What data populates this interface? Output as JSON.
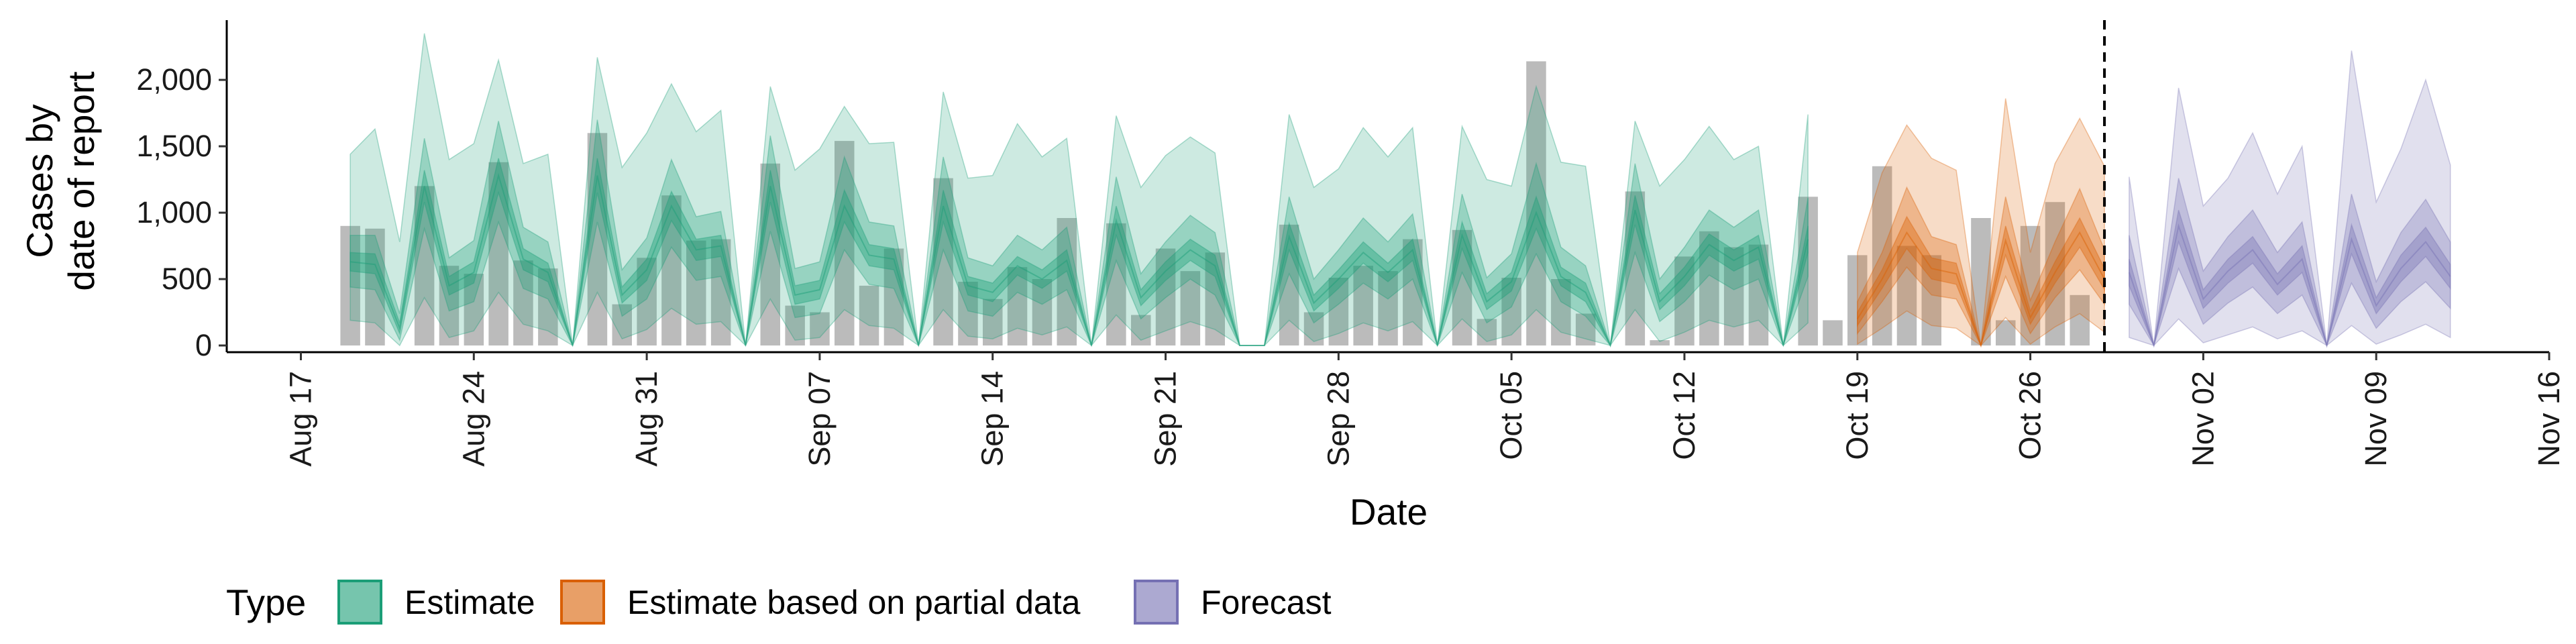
{
  "chart_data": {
    "type": "bar",
    "xlabel": "Date",
    "ylabel_lines": [
      "Cases by",
      "date of report"
    ],
    "ylim": [
      0,
      2450
    ],
    "y_ticks": [
      {
        "value": 0,
        "label": "0"
      },
      {
        "value": 500,
        "label": "500"
      },
      {
        "value": 1000,
        "label": "1,000"
      },
      {
        "value": 1500,
        "label": "1,500"
      },
      {
        "value": 2000,
        "label": "2,000"
      }
    ],
    "x_range": [
      "2020-08-14",
      "2020-11-16"
    ],
    "x_ticks": [
      {
        "date": "2020-08-17",
        "label": "Aug 17"
      },
      {
        "date": "2020-08-24",
        "label": "Aug 24"
      },
      {
        "date": "2020-08-31",
        "label": "Aug 31"
      },
      {
        "date": "2020-09-07",
        "label": "Sep 07"
      },
      {
        "date": "2020-09-14",
        "label": "Sep 14"
      },
      {
        "date": "2020-09-21",
        "label": "Sep 21"
      },
      {
        "date": "2020-09-28",
        "label": "Sep 28"
      },
      {
        "date": "2020-10-05",
        "label": "Oct 05"
      },
      {
        "date": "2020-10-12",
        "label": "Oct 12"
      },
      {
        "date": "2020-10-19",
        "label": "Oct 19"
      },
      {
        "date": "2020-10-26",
        "label": "Oct 26"
      },
      {
        "date": "2020-11-02",
        "label": "Nov 02"
      },
      {
        "date": "2020-11-09",
        "label": "Nov 09"
      },
      {
        "date": "2020-11-16",
        "label": "Nov 16"
      }
    ],
    "forecast_start": "2020-10-29",
    "colors": {
      "observed_bars": "#9e9e9e",
      "Estimate": "#1b9e77",
      "Estimate based on partial data": "#d95f02",
      "Forecast": "#7570b3",
      "forecast_line": "#000000"
    },
    "observed": {
      "start_date": "2020-08-19",
      "values": [
        900,
        880,
        0,
        1200,
        600,
        540,
        1380,
        640,
        580,
        0,
        1600,
        310,
        660,
        1130,
        790,
        800,
        0,
        1370,
        300,
        250,
        1540,
        450,
        730,
        0,
        1260,
        480,
        350,
        590,
        500,
        960,
        0,
        920,
        230,
        730,
        560,
        700,
        0,
        0,
        910,
        250,
        510,
        600,
        560,
        800,
        0,
        870,
        200,
        510,
        2140,
        500,
        240,
        0,
        1160,
        40,
        670,
        860,
        740,
        760,
        0,
        1120,
        190,
        680,
        1350,
        750,
        680,
        0,
        960,
        190,
        900,
        1080,
        380
      ]
    },
    "series": [
      {
        "name": "Estimate",
        "start_date": "2020-08-19",
        "median": [
          630,
          610,
          130,
          1200,
          450,
          550,
          1280,
          650,
          550,
          0,
          1280,
          380,
          570,
          1050,
          720,
          750,
          0,
          1200,
          380,
          420,
          1050,
          680,
          650,
          0,
          1050,
          450,
          400,
          600,
          500,
          640,
          0,
          940,
          360,
          560,
          720,
          600,
          0,
          0,
          820,
          320,
          500,
          700,
          550,
          720,
          0,
          830,
          330,
          480,
          1000,
          520,
          400,
          0,
          1020,
          330,
          520,
          760,
          640,
          740,
          0,
          800
        ],
        "low20": [
          560,
          540,
          90,
          1080,
          380,
          470,
          1150,
          570,
          480,
          0,
          1150,
          320,
          490,
          940,
          640,
          670,
          0,
          1080,
          310,
          350,
          930,
          600,
          570,
          0,
          930,
          380,
          330,
          530,
          430,
          560,
          0,
          830,
          300,
          490,
          640,
          520,
          0,
          0,
          720,
          260,
          430,
          620,
          480,
          640,
          0,
          730,
          270,
          410,
          880,
          450,
          330,
          0,
          910,
          270,
          450,
          680,
          560,
          650,
          0,
          700
        ],
        "high20": [
          700,
          690,
          170,
          1320,
          520,
          630,
          1410,
          730,
          620,
          0,
          1410,
          440,
          650,
          1160,
          800,
          830,
          0,
          1320,
          450,
          490,
          1170,
          760,
          730,
          0,
          1170,
          520,
          470,
          670,
          570,
          720,
          0,
          1050,
          420,
          630,
          800,
          680,
          0,
          0,
          920,
          380,
          570,
          780,
          620,
          800,
          0,
          930,
          390,
          550,
          1120,
          590,
          470,
          0,
          1130,
          390,
          590,
          840,
          720,
          830,
          0,
          900
        ],
        "low50": [
          440,
          420,
          40,
          880,
          260,
          330,
          930,
          430,
          350,
          0,
          930,
          220,
          350,
          740,
          490,
          520,
          0,
          860,
          210,
          240,
          720,
          460,
          430,
          0,
          720,
          260,
          220,
          400,
          310,
          420,
          0,
          640,
          200,
          360,
          500,
          380,
          0,
          0,
          540,
          170,
          310,
          470,
          350,
          500,
          0,
          550,
          170,
          290,
          690,
          330,
          220,
          0,
          700,
          180,
          330,
          530,
          420,
          500,
          0,
          520
        ],
        "high50": [
          830,
          830,
          240,
          1560,
          660,
          790,
          1690,
          890,
          780,
          0,
          1700,
          570,
          810,
          1400,
          970,
          1010,
          0,
          1580,
          580,
          630,
          1420,
          930,
          900,
          0,
          1420,
          660,
          600,
          830,
          720,
          890,
          0,
          1270,
          540,
          780,
          980,
          850,
          0,
          0,
          1120,
          500,
          720,
          960,
          780,
          990,
          0,
          1140,
          510,
          690,
          1370,
          740,
          600,
          0,
          1370,
          500,
          740,
          1020,
          890,
          1020,
          0,
          1110
        ],
        "low90": [
          190,
          170,
          0,
          360,
          60,
          110,
          400,
          160,
          110,
          0,
          400,
          50,
          120,
          280,
          160,
          180,
          0,
          350,
          40,
          60,
          270,
          150,
          130,
          0,
          270,
          70,
          50,
          130,
          80,
          140,
          0,
          230,
          40,
          110,
          180,
          120,
          0,
          0,
          190,
          30,
          90,
          170,
          110,
          180,
          0,
          200,
          30,
          80,
          270,
          100,
          50,
          0,
          270,
          30,
          100,
          190,
          140,
          190,
          0,
          170
        ],
        "high90": [
          1440,
          1630,
          780,
          2350,
          1400,
          1520,
          2150,
          1370,
          1440,
          0,
          2170,
          1340,
          1600,
          1970,
          1610,
          1770,
          0,
          1950,
          1320,
          1480,
          1800,
          1520,
          1530,
          0,
          1910,
          1260,
          1280,
          1670,
          1420,
          1560,
          0,
          1730,
          1190,
          1430,
          1570,
          1450,
          0,
          0,
          1740,
          1190,
          1330,
          1640,
          1420,
          1640,
          0,
          1650,
          1250,
          1200,
          1950,
          1380,
          1350,
          0,
          1690,
          1200,
          1400,
          1650,
          1400,
          1500,
          0,
          1740
        ]
      },
      {
        "name": "Estimate based on partial data",
        "start_date": "2020-10-19",
        "median": [
          200,
          500,
          850,
          580,
          540,
          0,
          790,
          210,
          550,
          850,
          500
        ],
        "low20": [
          150,
          430,
          730,
          500,
          460,
          0,
          680,
          160,
          470,
          740,
          420
        ],
        "high20": [
          250,
          570,
          970,
          660,
          620,
          0,
          900,
          260,
          630,
          960,
          580
        ],
        "low50": [
          90,
          330,
          590,
          380,
          350,
          0,
          520,
          90,
          360,
          570,
          310
        ],
        "high50": [
          330,
          700,
          1190,
          820,
          760,
          0,
          1120,
          340,
          780,
          1180,
          720
        ],
        "low90": [
          10,
          130,
          260,
          150,
          130,
          0,
          210,
          10,
          140,
          240,
          100
        ],
        "high90": [
          700,
          1300,
          1660,
          1410,
          1320,
          0,
          1860,
          700,
          1370,
          1710,
          1350
        ]
      },
      {
        "name": "Forecast",
        "start_date": "2020-10-30",
        "median": [
          550,
          0,
          900,
          350,
          560,
          720,
          460,
          650,
          0,
          800,
          300,
          580,
          780,
          520
        ],
        "low20": [
          450,
          0,
          780,
          280,
          470,
          620,
          380,
          550,
          0,
          690,
          240,
          480,
          670,
          430
        ],
        "high20": [
          650,
          0,
          1020,
          420,
          650,
          820,
          540,
          750,
          0,
          910,
          360,
          680,
          890,
          610
        ],
        "low50": [
          310,
          0,
          580,
          160,
          320,
          440,
          240,
          380,
          0,
          470,
          130,
          330,
          480,
          280
        ],
        "high50": [
          830,
          0,
          1260,
          560,
          820,
          1020,
          700,
          930,
          0,
          1140,
          480,
          850,
          1100,
          780
        ],
        "low90": [
          60,
          0,
          200,
          20,
          80,
          140,
          50,
          110,
          0,
          150,
          10,
          80,
          160,
          60
        ],
        "high90": [
          1270,
          0,
          1940,
          1050,
          1260,
          1600,
          1140,
          1500,
          0,
          2220,
          1080,
          1480,
          2000,
          1360
        ]
      }
    ]
  },
  "legend": {
    "title": "Type",
    "items": [
      {
        "label": "Estimate",
        "color_key": "Estimate"
      },
      {
        "label": "Estimate based on partial data",
        "color_key": "Estimate based on partial data"
      },
      {
        "label": "Forecast",
        "color_key": "Forecast"
      }
    ]
  }
}
